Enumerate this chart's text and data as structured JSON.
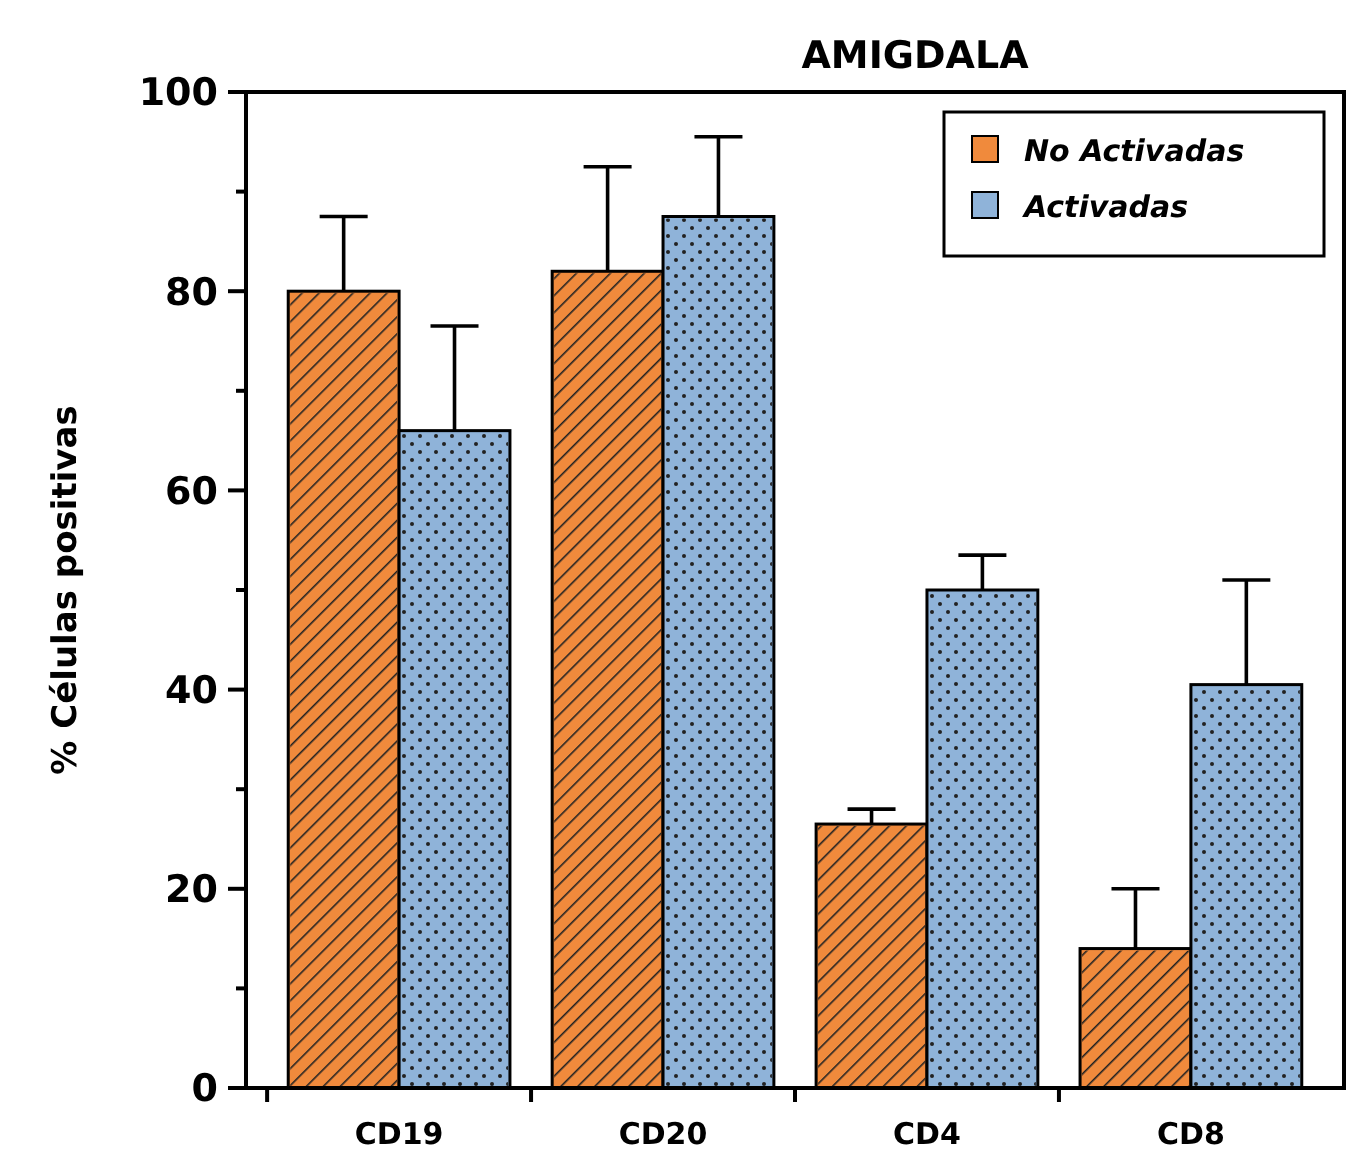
{
  "chart_data": {
    "type": "bar",
    "title": "AMIGDALA",
    "ylabel": "% Células positivas",
    "categories": [
      "CD19",
      "CD20",
      "CD4",
      "CD8"
    ],
    "series": [
      {
        "name": "No Activadas",
        "color": "#f08a3c",
        "values": [
          80,
          82,
          26.5,
          14
        ],
        "errors": [
          [
            80,
            87.5
          ],
          [
            82,
            92.5
          ],
          [
            26.5,
            28
          ],
          [
            14,
            20
          ]
        ]
      },
      {
        "name": "Activadas",
        "color": "#8fb3d9",
        "values": [
          66,
          87.5,
          50,
          40.5
        ],
        "errors": [
          [
            66,
            76.5
          ],
          [
            87.5,
            95.5
          ],
          [
            50,
            53.5
          ],
          [
            40.5,
            51
          ]
        ]
      }
    ],
    "ylim": [
      0,
      100
    ],
    "yticks": [
      0,
      {
        "value": 10,
        "label": null
      },
      20,
      {
        "value": 30,
        "label": null
      },
      40,
      {
        "value": 50,
        "label": null
      },
      60,
      {
        "value": 70,
        "label": null
      },
      80,
      {
        "value": 90,
        "label": null
      },
      100
    ],
    "grid": false,
    "legend": "top right"
  }
}
